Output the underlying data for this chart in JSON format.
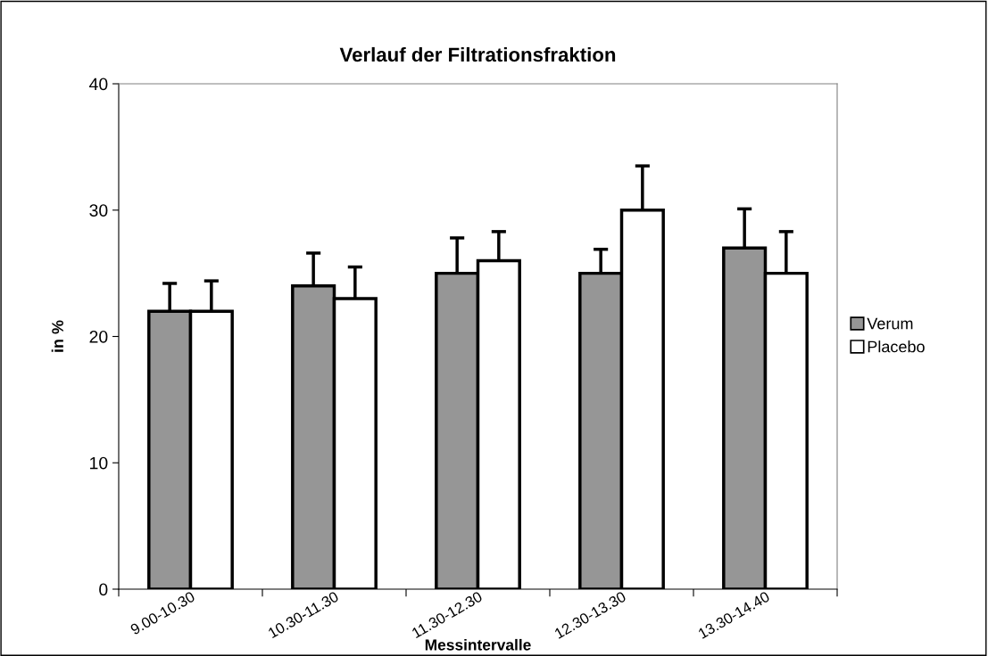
{
  "chart_data": {
    "type": "bar",
    "title": "Verlauf der Filtrationsfraktion",
    "xlabel": "Messintervalle",
    "ylabel": "in %",
    "categories": [
      "9.00-10.30",
      "10.30-11.30",
      "11.30-12.30",
      "12.30-13.30",
      "13.30-14.40"
    ],
    "series": [
      {
        "name": "Verum",
        "color": "#969696",
        "values": [
          22,
          24,
          25,
          25,
          27
        ],
        "errors": [
          [
            22,
            24.2
          ],
          [
            24,
            26.6
          ],
          [
            25,
            27.8
          ],
          [
            25,
            26.9
          ],
          [
            27,
            30.1
          ]
        ]
      },
      {
        "name": "Placebo",
        "color": "#ffffff",
        "values": [
          22,
          23,
          26,
          30,
          25
        ],
        "errors": [
          [
            22,
            24.4
          ],
          [
            23,
            25.5
          ],
          [
            26,
            28.3
          ],
          [
            30,
            33.5
          ],
          [
            25,
            28.3
          ]
        ]
      }
    ],
    "ylim": [
      0,
      40
    ],
    "yticks": [
      0,
      10,
      20,
      30,
      40
    ],
    "grid": false,
    "legend": "right"
  }
}
